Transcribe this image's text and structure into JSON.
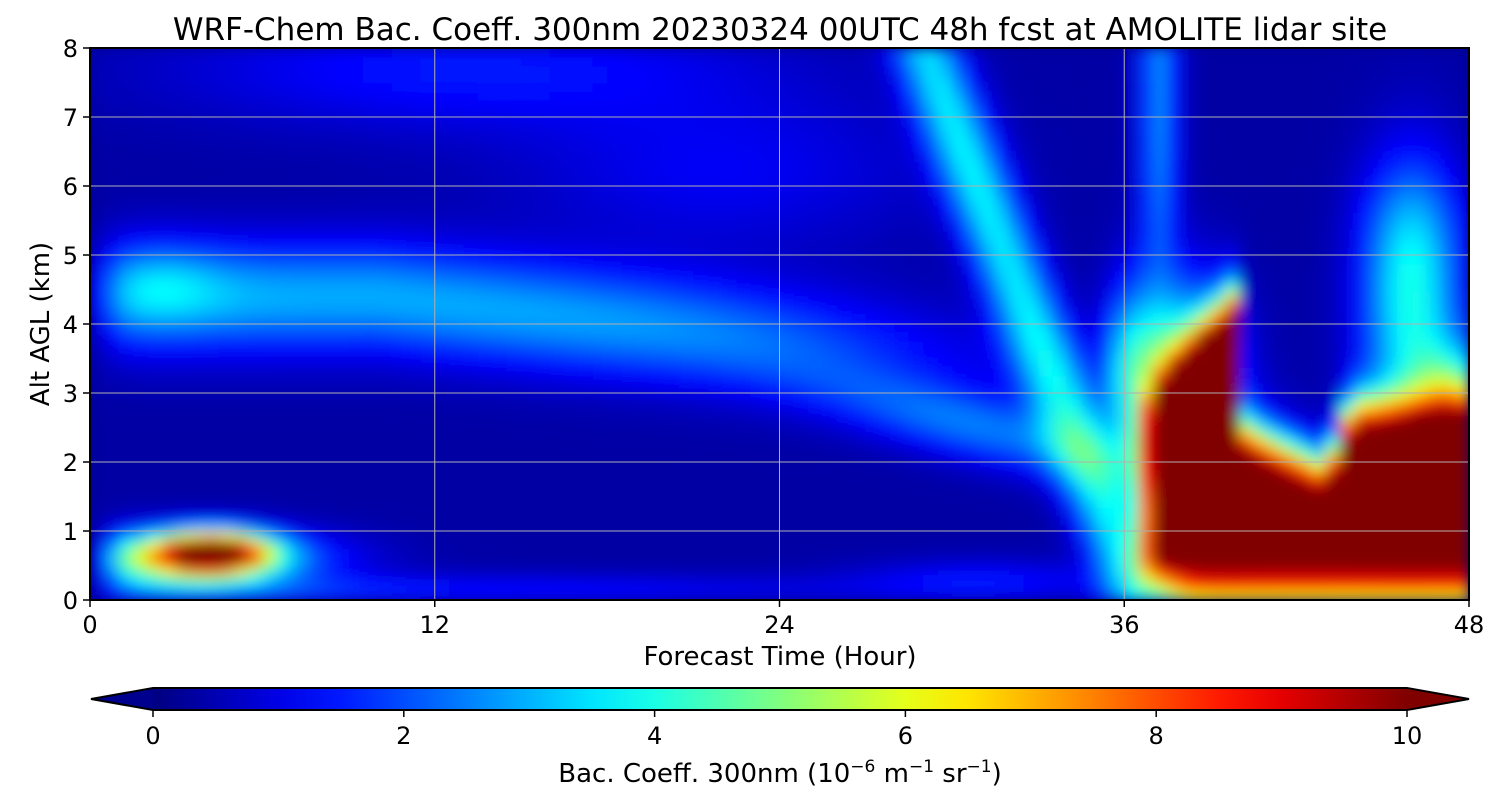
{
  "chart_data": {
    "type": "heatmap",
    "title": "WRF-Chem Bac. Coeff. 300nm  20230324 00UTC 48h fcst at AMOLITE lidar site",
    "xlabel": "Forecast Time (Hour)",
    "ylabel": "Alt AGL (km)",
    "xlim": [
      0,
      48
    ],
    "ylim": [
      0,
      8
    ],
    "xticks": [
      0,
      12,
      24,
      36,
      48
    ],
    "yticks": [
      0,
      1,
      2,
      3,
      4,
      5,
      6,
      7,
      8
    ],
    "grid": true,
    "colormap": "jet",
    "colorbar": {
      "label_main": "Bac. Coeff. 300nm  (10",
      "label_exp1": "−6",
      "label_mid": " m",
      "label_exp2": "−1",
      "label_tail": " sr",
      "label_exp3": "−1",
      "label_close": ")",
      "ticks": [
        0,
        2,
        4,
        6,
        8,
        10
      ],
      "range": [
        0,
        10
      ],
      "extend": "both",
      "orientation": "horizontal"
    },
    "z_features": [
      {
        "desc": "low layer 0-1 km, hours 0.5-8",
        "peak": 9.0
      },
      {
        "desc": "layer 3.5-5 km, hours 1-26",
        "peak": 3.8
      },
      {
        "desc": "rising plume hours 26-37",
        "peak": 6.0
      },
      {
        "desc": "heavy surface-3 km layer hours 37-48",
        "peak": 10.0
      }
    ]
  }
}
